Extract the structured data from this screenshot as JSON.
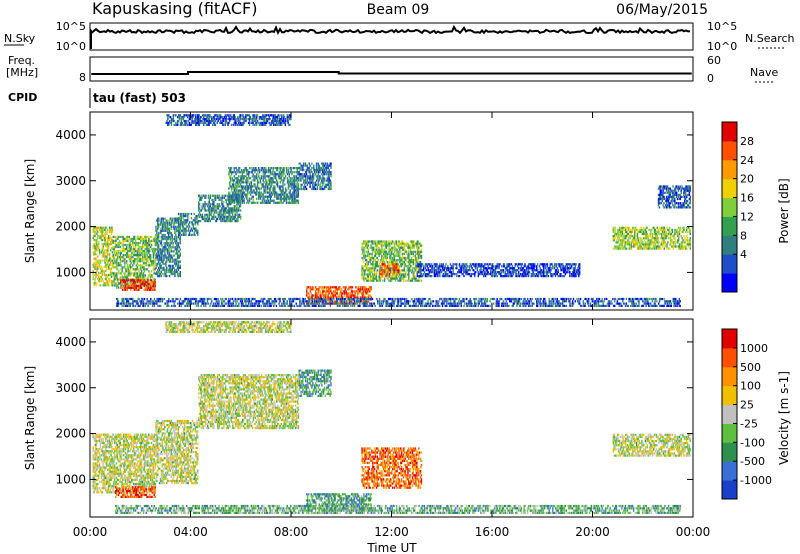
{
  "header": {
    "station": "Kapuskasing (fitACF)",
    "beam": "Beam 09",
    "date": "06/May/2015"
  },
  "top_panels": {
    "nsky": {
      "left_label": "N.Sky",
      "left_top_tick": "10^5",
      "left_bottom_tick": "10^0",
      "right_label": "N.Search",
      "right_top_tick": "10^5",
      "right_bottom_tick": "10^0"
    },
    "freq": {
      "left_label_1": "Freq.",
      "left_label_2": "[MHz]",
      "left_tick": "8",
      "right_label": "Nave",
      "right_top_tick": "60",
      "right_bottom_tick": "0"
    },
    "cpid": {
      "label": "CPID",
      "value": "tau (fast) 503"
    }
  },
  "chart_data": [
    {
      "type": "heatmap",
      "name": "power",
      "ylabel": "Slant Range [km]",
      "y_ticks": [
        "4000",
        "3000",
        "2000",
        "1000"
      ],
      "y_tick_values": [
        4000,
        3000,
        2000,
        1000
      ],
      "ylim": [
        180,
        4500
      ],
      "xlim": [
        0,
        24
      ],
      "colorbar": {
        "label": "Power [dB]",
        "ticks": [
          "28",
          "24",
          "20",
          "16",
          "12",
          "8",
          "4"
        ],
        "colors": [
          "#0000ff",
          "#1e4ec8",
          "#2f7f7f",
          "#33a050",
          "#7fcf3a",
          "#f0d000",
          "#ff9a00",
          "#ff5000",
          "#e00000"
        ]
      },
      "regions": [
        {
          "t0": 0.1,
          "t1": 0.9,
          "r0": 700,
          "r1": 2000,
          "v": 0.55
        },
        {
          "t0": 0.9,
          "t1": 2.6,
          "r0": 650,
          "r1": 1800,
          "v": 0.45
        },
        {
          "t0": 1.2,
          "t1": 2.6,
          "r0": 600,
          "r1": 850,
          "v": 0.9
        },
        {
          "t0": 2.6,
          "t1": 3.6,
          "r0": 900,
          "r1": 2200,
          "v": 0.3
        },
        {
          "t0": 3.5,
          "t1": 4.3,
          "r0": 1800,
          "r1": 2300,
          "v": 0.3
        },
        {
          "t0": 4.3,
          "t1": 6.0,
          "r0": 2100,
          "r1": 2700,
          "v": 0.3
        },
        {
          "t0": 5.5,
          "t1": 8.3,
          "r0": 2500,
          "r1": 3300,
          "v": 0.3
        },
        {
          "t0": 8.3,
          "t1": 9.6,
          "r0": 2800,
          "r1": 3400,
          "v": 0.25
        },
        {
          "t0": 8.6,
          "t1": 11.2,
          "r0": 300,
          "r1": 700,
          "v": 0.85
        },
        {
          "t0": 10.8,
          "t1": 13.2,
          "r0": 800,
          "r1": 1700,
          "v": 0.45
        },
        {
          "t0": 11.5,
          "t1": 12.3,
          "r0": 900,
          "r1": 1200,
          "v": 0.8
        },
        {
          "t0": 1.0,
          "t1": 23.5,
          "r0": 250,
          "r1": 450,
          "v": 0.2
        },
        {
          "t0": 20.8,
          "t1": 23.9,
          "r0": 1500,
          "r1": 2000,
          "v": 0.5
        },
        {
          "t0": 22.6,
          "t1": 23.9,
          "r0": 2400,
          "r1": 2900,
          "v": 0.2
        },
        {
          "t0": 3.0,
          "t1": 8.0,
          "r0": 4200,
          "r1": 4450,
          "v": 0.2
        },
        {
          "t0": 13.0,
          "t1": 19.5,
          "r0": 900,
          "r1": 1200,
          "v": 0.15
        }
      ]
    },
    {
      "type": "heatmap",
      "name": "velocity",
      "ylabel": "Slant Range [km]",
      "y_ticks": [
        "4000",
        "3000",
        "2000",
        "1000"
      ],
      "y_tick_values": [
        4000,
        3000,
        2000,
        1000
      ],
      "ylim": [
        180,
        4500
      ],
      "xlim": [
        0,
        24
      ],
      "colorbar": {
        "label": "Velocity [m s-1]",
        "ticks": [
          "1000",
          "500",
          "100",
          "25",
          "-25",
          "-100",
          "-500",
          "-1000"
        ],
        "colors": [
          "#1a3fc8",
          "#3a6fd8",
          "#2f8f4f",
          "#5fc040",
          "#c0c0c0",
          "#f0c000",
          "#ff9000",
          "#ff5000",
          "#e00000"
        ]
      },
      "regions": [
        {
          "t0": 0.1,
          "t1": 2.6,
          "r0": 700,
          "r1": 2000,
          "v": 0.5
        },
        {
          "t0": 1.0,
          "t1": 2.6,
          "r0": 600,
          "r1": 850,
          "v": 0.85
        },
        {
          "t0": 2.6,
          "t1": 4.3,
          "r0": 900,
          "r1": 2300,
          "v": 0.5
        },
        {
          "t0": 4.3,
          "t1": 8.3,
          "r0": 2100,
          "r1": 3300,
          "v": 0.5
        },
        {
          "t0": 8.3,
          "t1": 9.6,
          "r0": 2800,
          "r1": 3400,
          "v": 0.3
        },
        {
          "t0": 8.6,
          "t1": 11.2,
          "r0": 300,
          "r1": 700,
          "v": 0.3
        },
        {
          "t0": 10.8,
          "t1": 13.2,
          "r0": 800,
          "r1": 1700,
          "v": 0.8
        },
        {
          "t0": 1.0,
          "t1": 23.5,
          "r0": 250,
          "r1": 450,
          "v": 0.35
        },
        {
          "t0": 20.8,
          "t1": 23.9,
          "r0": 1500,
          "r1": 2000,
          "v": 0.5
        },
        {
          "t0": 3.0,
          "t1": 8.0,
          "r0": 4200,
          "r1": 4450,
          "v": 0.5
        }
      ]
    }
  ],
  "x_axis": {
    "label": "Time UT",
    "ticks": [
      "00:00",
      "04:00",
      "08:00",
      "12:00",
      "16:00",
      "20:00",
      "00:00"
    ],
    "tick_values": [
      0,
      4,
      8,
      12,
      16,
      20,
      24
    ]
  }
}
